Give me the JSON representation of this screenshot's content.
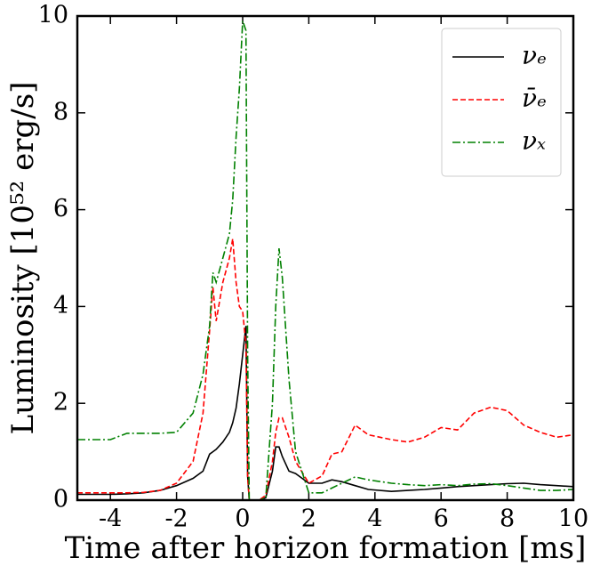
{
  "chart_data": {
    "type": "line",
    "xlabel": "Time after horizon formation [ms]",
    "ylabel": "Luminosity [10⁵² erg/s]",
    "x": [
      -5,
      -4,
      -3.5,
      -3,
      -2.5,
      -2,
      -1.5,
      -1.2,
      -1,
      -0.9,
      -0.8,
      -0.6,
      -0.4,
      -0.3,
      -0.2,
      -0.1,
      0,
      0.1,
      0.15,
      0.2,
      0.5,
      0.7,
      0.9,
      1.0,
      1.1,
      1.2,
      1.4,
      1.6,
      2,
      2.4,
      2.7,
      3,
      3.4,
      3.8,
      4.5,
      5,
      5.5,
      6,
      6.5,
      7,
      7.5,
      8,
      8.5,
      9,
      9.5,
      10
    ],
    "series": [
      {
        "name": "νₑ",
        "color": "#000000",
        "linestyle": "solid",
        "values": [
          0.12,
          0.12,
          0.13,
          0.15,
          0.2,
          0.3,
          0.45,
          0.6,
          0.95,
          1.0,
          1.05,
          1.2,
          1.4,
          1.6,
          1.9,
          2.4,
          3.0,
          3.6,
          0.5,
          0,
          0,
          0.05,
          0.6,
          1.1,
          1.1,
          0.9,
          0.6,
          0.55,
          0.35,
          0.35,
          0.42,
          0.38,
          0.3,
          0.22,
          0.18,
          0.2,
          0.22,
          0.25,
          0.28,
          0.3,
          0.32,
          0.34,
          0.35,
          0.32,
          0.3,
          0.28
        ]
      },
      {
        "name": "ν̄ₑ",
        "color": "#ff0000",
        "linestyle": "dashed",
        "values": [
          0.15,
          0.15,
          0.15,
          0.16,
          0.2,
          0.35,
          0.8,
          1.8,
          3.5,
          4.4,
          3.7,
          4.5,
          5.0,
          5.4,
          4.5,
          4.0,
          3.9,
          3.2,
          0.5,
          0,
          0,
          0.1,
          0.8,
          1.4,
          1.7,
          1.7,
          1.3,
          0.8,
          0.35,
          0.5,
          0.95,
          1.0,
          1.55,
          1.35,
          1.25,
          1.2,
          1.3,
          1.5,
          1.45,
          1.8,
          1.92,
          1.85,
          1.55,
          1.4,
          1.3,
          1.35
        ]
      },
      {
        "name": "νₓ",
        "color": "#008000",
        "linestyle": "dashdot",
        "values": [
          1.25,
          1.25,
          1.38,
          1.38,
          1.38,
          1.4,
          1.8,
          2.6,
          3.6,
          4.7,
          4.5,
          5.0,
          5.5,
          6.2,
          7.5,
          8.5,
          9.9,
          9.7,
          3,
          0,
          0,
          0.05,
          2.0,
          4.0,
          5.2,
          4.6,
          2.5,
          1.0,
          0.15,
          0.15,
          0.25,
          0.35,
          0.48,
          0.42,
          0.35,
          0.32,
          0.3,
          0.32,
          0.3,
          0.33,
          0.34,
          0.3,
          0.25,
          0.2,
          0.2,
          0.22
        ]
      }
    ],
    "xlim": [
      -5,
      10
    ],
    "xticks": [
      -4,
      -2,
      0,
      2,
      4,
      6,
      8,
      10
    ],
    "ylim": [
      0,
      10
    ],
    "yticks": [
      0,
      2,
      4,
      6,
      8,
      10
    ],
    "legend": "upper right"
  }
}
